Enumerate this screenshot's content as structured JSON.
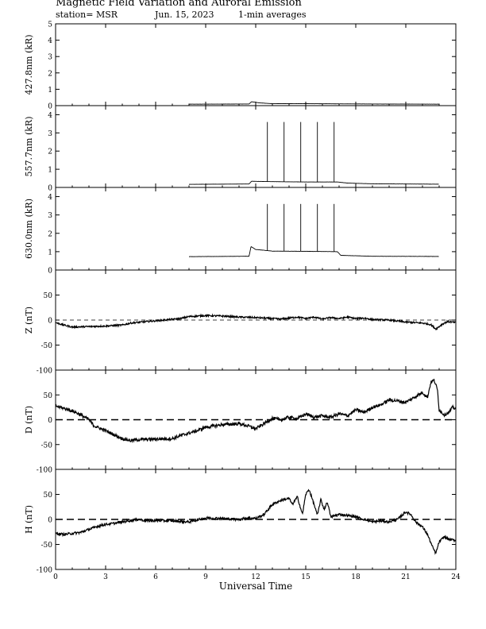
{
  "header": {
    "title": "Magnetic Field Variation and Auroral Emission",
    "station": "station= MSR",
    "date": "Jun. 15, 2023",
    "averaging": "1-min averages"
  },
  "chart_data": {
    "type": "line",
    "xlabel": "Universal Time",
    "xlim": [
      0,
      24
    ],
    "xticks": [
      0,
      3,
      6,
      9,
      12,
      15,
      18,
      21,
      24
    ],
    "panels": [
      {
        "id": "p4278",
        "ylabel": "427.8nm (kR)",
        "ylim": [
          0,
          5
        ],
        "yticks": [
          0,
          1,
          2,
          3,
          4,
          5
        ],
        "zero_line": "solid",
        "noise": 0.03,
        "spikes": [],
        "series": [
          [
            8,
            0.09
          ],
          [
            11.6,
            0.1
          ],
          [
            11.75,
            0.24
          ],
          [
            12.2,
            0.17
          ],
          [
            13,
            0.12
          ],
          [
            15,
            0.12
          ],
          [
            17,
            0.11
          ],
          [
            19,
            0.1
          ],
          [
            23,
            0.09
          ]
        ]
      },
      {
        "id": "p5577",
        "ylabel": "557.7nm (kR)",
        "ylim": [
          0,
          4.5
        ],
        "yticks": [
          0,
          1,
          2,
          3,
          4
        ],
        "zero_line": "solid",
        "noise": 0.03,
        "spikes": [
          {
            "t": 12.7,
            "v": 3.6
          },
          {
            "t": 13.7,
            "v": 3.6
          },
          {
            "t": 14.7,
            "v": 3.6
          },
          {
            "t": 15.7,
            "v": 3.6
          },
          {
            "t": 16.7,
            "v": 3.6
          }
        ],
        "series": [
          [
            8,
            0.17
          ],
          [
            11.6,
            0.19
          ],
          [
            11.75,
            0.34
          ],
          [
            13,
            0.32
          ],
          [
            15,
            0.3
          ],
          [
            16.9,
            0.3
          ],
          [
            17.5,
            0.24
          ],
          [
            19,
            0.2
          ],
          [
            23,
            0.18
          ]
        ]
      },
      {
        "id": "p6300",
        "ylabel": "630.0nm (kR)",
        "ylim": [
          0,
          4.5
        ],
        "yticks": [
          0,
          1,
          2,
          3,
          4
        ],
        "zero_line": "solid",
        "noise": 0.06,
        "spikes": [
          {
            "t": 12.7,
            "v": 3.6
          },
          {
            "t": 13.7,
            "v": 3.6
          },
          {
            "t": 14.7,
            "v": 3.6
          },
          {
            "t": 15.7,
            "v": 3.6
          },
          {
            "t": 16.7,
            "v": 3.6
          }
        ],
        "series": [
          [
            8,
            0.73
          ],
          [
            11.6,
            0.75
          ],
          [
            11.72,
            1.28
          ],
          [
            12,
            1.12
          ],
          [
            13,
            1.03
          ],
          [
            15,
            1.02
          ],
          [
            16.9,
            1.0
          ],
          [
            17.1,
            0.8
          ],
          [
            19,
            0.75
          ],
          [
            23,
            0.74
          ]
        ]
      },
      {
        "id": "pZ",
        "ylabel": "Z (nT)",
        "ylim": [
          -100,
          100
        ],
        "yticks": [
          -100,
          -50,
          0,
          50
        ],
        "zero_line": "dashed-thin",
        "noise": 0.4,
        "spikes": [],
        "series": [
          [
            0,
            -5
          ],
          [
            0.5,
            -10
          ],
          [
            1,
            -14
          ],
          [
            2,
            -13
          ],
          [
            3,
            -12
          ],
          [
            4,
            -10
          ],
          [
            4.5,
            -6
          ],
          [
            5.5,
            -3
          ],
          [
            6.5,
            0
          ],
          [
            7.5,
            3
          ],
          [
            8,
            7
          ],
          [
            9,
            9
          ],
          [
            10,
            8
          ],
          [
            11,
            6
          ],
          [
            12,
            5
          ],
          [
            13,
            3
          ],
          [
            13.5,
            2
          ],
          [
            14.5,
            6
          ],
          [
            15,
            3
          ],
          [
            15.5,
            6
          ],
          [
            16,
            2
          ],
          [
            16.5,
            5
          ],
          [
            17,
            3
          ],
          [
            17.5,
            6
          ],
          [
            18,
            3
          ],
          [
            18.5,
            4
          ],
          [
            19,
            1
          ],
          [
            20,
            0
          ],
          [
            20.5,
            -2
          ],
          [
            21,
            -4
          ],
          [
            21.5,
            -5
          ],
          [
            22,
            -6
          ],
          [
            22.5,
            -9
          ],
          [
            22.8,
            -18
          ],
          [
            23.2,
            -8
          ],
          [
            23.5,
            -3
          ],
          [
            24,
            -5
          ]
        ]
      },
      {
        "id": "pD",
        "ylabel": "D (nT)",
        "ylim": [
          -100,
          100
        ],
        "yticks": [
          -100,
          -50,
          0,
          50
        ],
        "zero_line": "dashed-thick",
        "noise": 0.8,
        "spikes": [],
        "series": [
          [
            0,
            28
          ],
          [
            0.5,
            23
          ],
          [
            1,
            18
          ],
          [
            1.5,
            10
          ],
          [
            2,
            0
          ],
          [
            2.3,
            -12
          ],
          [
            2.7,
            -18
          ],
          [
            3,
            -22
          ],
          [
            3.5,
            -30
          ],
          [
            4,
            -38
          ],
          [
            4.5,
            -42
          ],
          [
            5,
            -40
          ],
          [
            6,
            -39
          ],
          [
            7,
            -38
          ],
          [
            7.5,
            -32
          ],
          [
            8.5,
            -22
          ],
          [
            9,
            -15
          ],
          [
            10,
            -10
          ],
          [
            11,
            -8
          ],
          [
            11.5,
            -12
          ],
          [
            12,
            -18
          ],
          [
            12.5,
            -8
          ],
          [
            13,
            3
          ],
          [
            13.5,
            0
          ],
          [
            14,
            5
          ],
          [
            14.5,
            2
          ],
          [
            15,
            12
          ],
          [
            15.5,
            5
          ],
          [
            16,
            8
          ],
          [
            16.5,
            5
          ],
          [
            17,
            12
          ],
          [
            17.5,
            8
          ],
          [
            18,
            20
          ],
          [
            18.5,
            15
          ],
          [
            19,
            25
          ],
          [
            19.5,
            30
          ],
          [
            20,
            40
          ],
          [
            20.5,
            38
          ],
          [
            21,
            35
          ],
          [
            21.5,
            45
          ],
          [
            22,
            55
          ],
          [
            22.3,
            45
          ],
          [
            22.5,
            75
          ],
          [
            22.7,
            80
          ],
          [
            22.9,
            60
          ],
          [
            23,
            20
          ],
          [
            23.3,
            10
          ],
          [
            23.6,
            15
          ],
          [
            23.8,
            25
          ],
          [
            24,
            22
          ]
        ]
      },
      {
        "id": "pH",
        "ylabel": "H (nT)",
        "ylim": [
          -100,
          100
        ],
        "yticks": [
          -100,
          -50,
          0,
          50
        ],
        "zero_line": "dashed-thick",
        "noise": 0.6,
        "spikes": [],
        "series": [
          [
            0,
            -28
          ],
          [
            0.5,
            -30
          ],
          [
            1,
            -28
          ],
          [
            1.5,
            -26
          ],
          [
            2,
            -20
          ],
          [
            2.5,
            -14
          ],
          [
            3,
            -10
          ],
          [
            3.5,
            -8
          ],
          [
            4,
            -5
          ],
          [
            4.5,
            -2
          ],
          [
            5,
            0
          ],
          [
            5.5,
            -3
          ],
          [
            6,
            -2
          ],
          [
            7,
            -3
          ],
          [
            8,
            -5
          ],
          [
            9,
            3
          ],
          [
            10,
            2
          ],
          [
            11,
            0
          ],
          [
            11.5,
            3
          ],
          [
            12,
            2
          ],
          [
            12.5,
            10
          ],
          [
            13,
            30
          ],
          [
            13.5,
            38
          ],
          [
            14,
            42
          ],
          [
            14.2,
            30
          ],
          [
            14.5,
            45
          ],
          [
            14.8,
            10
          ],
          [
            15,
            50
          ],
          [
            15.2,
            60
          ],
          [
            15.5,
            30
          ],
          [
            15.7,
            8
          ],
          [
            15.9,
            40
          ],
          [
            16.1,
            20
          ],
          [
            16.3,
            35
          ],
          [
            16.5,
            5
          ],
          [
            17,
            10
          ],
          [
            17.5,
            8
          ],
          [
            18,
            5
          ],
          [
            18.5,
            0
          ],
          [
            19,
            -5
          ],
          [
            19.5,
            -3
          ],
          [
            20,
            -5
          ],
          [
            20.5,
            0
          ],
          [
            21,
            15
          ],
          [
            21.3,
            10
          ],
          [
            21.6,
            -5
          ],
          [
            22,
            -15
          ],
          [
            22.3,
            -30
          ],
          [
            22.6,
            -55
          ],
          [
            22.8,
            -68
          ],
          [
            23,
            -45
          ],
          [
            23.3,
            -35
          ],
          [
            23.6,
            -40
          ],
          [
            24,
            -42
          ]
        ]
      }
    ]
  }
}
